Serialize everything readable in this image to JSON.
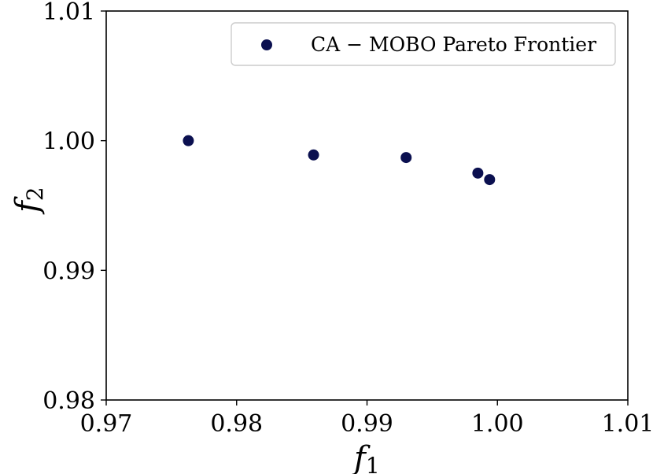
{
  "chart_data": {
    "type": "scatter",
    "title": "",
    "xlabel": "f",
    "xlabel_sub": "1",
    "ylabel": "f",
    "ylabel_sub": "2",
    "xlim": [
      0.97,
      1.01
    ],
    "ylim": [
      0.98,
      1.01
    ],
    "xticks": [
      0.97,
      0.98,
      0.99,
      1.0,
      1.01
    ],
    "yticks": [
      0.98,
      0.99,
      1.0,
      1.01
    ],
    "xtick_labels": [
      "0.97",
      "0.98",
      "0.99",
      "1.00",
      "1.01"
    ],
    "ytick_labels": [
      "0.98",
      "0.99",
      "1.00",
      "1.01"
    ],
    "grid": false,
    "legend_position": "top-right",
    "series": [
      {
        "name": "CA − MOBO Pareto Frontier",
        "color": "#0b1050",
        "points": [
          {
            "x": 0.9763,
            "y": 1.0
          },
          {
            "x": 0.9859,
            "y": 0.9989
          },
          {
            "x": 0.993,
            "y": 0.9987
          },
          {
            "x": 0.9985,
            "y": 0.9975
          },
          {
            "x": 0.9994,
            "y": 0.997
          }
        ]
      }
    ]
  }
}
